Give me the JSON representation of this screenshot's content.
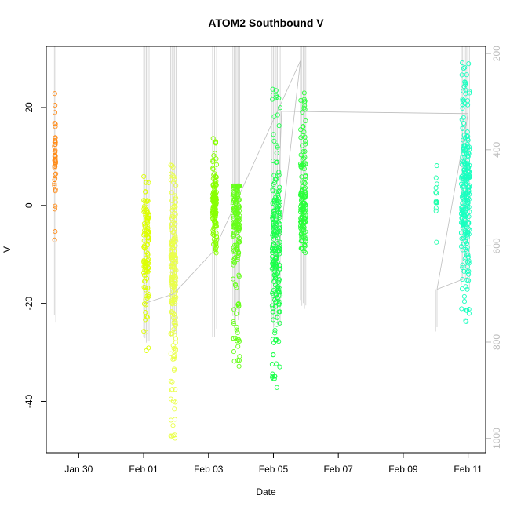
{
  "chart_data": {
    "type": "scatter",
    "title": "ATOM2 Southbound V",
    "xlabel": "Date",
    "ylabel": "V",
    "x_domain": [
      "2013-01-29 00:00",
      "2013-02-11 13:00"
    ],
    "y_domain": [
      -50.5,
      32.5
    ],
    "x_ticks": [
      {
        "value": "2013-01-30",
        "label": "Jan 30"
      },
      {
        "value": "2013-02-01",
        "label": "Feb 01"
      },
      {
        "value": "2013-02-03",
        "label": "Feb 03"
      },
      {
        "value": "2013-02-05",
        "label": "Feb 05"
      },
      {
        "value": "2013-02-07",
        "label": "Feb 07"
      },
      {
        "value": "2013-02-09",
        "label": "Feb 09"
      },
      {
        "value": "2013-02-11",
        "label": "Feb 11"
      }
    ],
    "y_ticks": [
      20,
      0,
      -20,
      -40
    ],
    "right_axis": {
      "label": "",
      "domain": [
        185,
        1030
      ],
      "ticks": [
        200,
        400,
        600,
        800,
        1000
      ],
      "direction": "inverted",
      "color": "#bdbdbd"
    },
    "grid": false,
    "legend": "none",
    "series": [
      {
        "color": "#ff8c1a",
        "x_start": "2013-01-29 06:00",
        "x_end": "2013-01-29 07:00",
        "y_min": -8,
        "y_max": 23,
        "y_center": 9,
        "count": 45,
        "profile_depth": [
          185,
          770
        ]
      },
      {
        "color": "#ddff00",
        "x_start": "2013-02-01 00:00",
        "x_end": "2013-02-01 04:00",
        "y_min": -30,
        "y_max": 6,
        "y_center": -8,
        "count": 120,
        "profile_depth": [
          185,
          815
        ]
      },
      {
        "color": "#eaff4a",
        "x_start": "2013-02-01 20:00",
        "x_end": "2013-02-02 00:00",
        "y_min": -48,
        "y_max": 10,
        "y_center": -12,
        "count": 180,
        "profile_depth": [
          185,
          800
        ]
      },
      {
        "color": "#88ff00",
        "x_start": "2013-02-03 03:00",
        "x_end": "2013-02-03 06:00",
        "y_min": -10,
        "y_max": 14,
        "y_center": 0,
        "count": 140,
        "profile_depth": [
          185,
          800
        ]
      },
      {
        "color": "#66ff1a",
        "x_start": "2013-02-03 18:00",
        "x_end": "2013-02-03 23:00",
        "y_min": -33,
        "y_max": 4,
        "y_center": -3,
        "count": 170,
        "profile_depth": [
          185,
          770
        ]
      },
      {
        "color": "#1aff4a",
        "x_start": "2013-02-04 23:00",
        "x_end": "2013-02-05 05:00",
        "y_min": -38,
        "y_max": 24,
        "y_center": -10,
        "count": 230,
        "profile_depth": [
          185,
          780
        ]
      },
      {
        "color": "#2aff3a",
        "x_start": "2013-02-05 20:00",
        "x_end": "2013-02-06 00:00",
        "y_min": -10,
        "y_max": 23,
        "y_center": 0,
        "count": 150,
        "profile_depth": [
          185,
          740
        ]
      },
      {
        "color": "#1affaa",
        "x_start": "2013-02-10 00:00",
        "x_end": "2013-02-10 01:00",
        "y_min": -9,
        "y_max": 9,
        "y_center": 2,
        "count": 14,
        "profile_depth": [
          690,
          790
        ]
      },
      {
        "color": "#1affc0",
        "x_start": "2013-02-10 19:00",
        "x_end": "2013-02-11 01:00",
        "y_min": -24,
        "y_max": 30,
        "y_center": 3,
        "count": 260,
        "profile_depth": [
          185,
          690
        ]
      }
    ],
    "track": {
      "color": "#bdbdbd",
      "points": [
        [
          "2013-02-01 00:00",
          720
        ],
        [
          "2013-02-01 22:00",
          700
        ],
        [
          "2013-02-03 04:00",
          610
        ],
        [
          "2013-02-05 20:00",
          215
        ],
        [
          "2013-02-05 02:00",
          660
        ],
        [
          "2013-02-05 06:00",
          320
        ],
        [
          "2013-02-11 00:00",
          325
        ],
        [
          "2013-02-10 01:00",
          690
        ],
        [
          "2013-02-11 00:00",
          665
        ]
      ]
    }
  }
}
